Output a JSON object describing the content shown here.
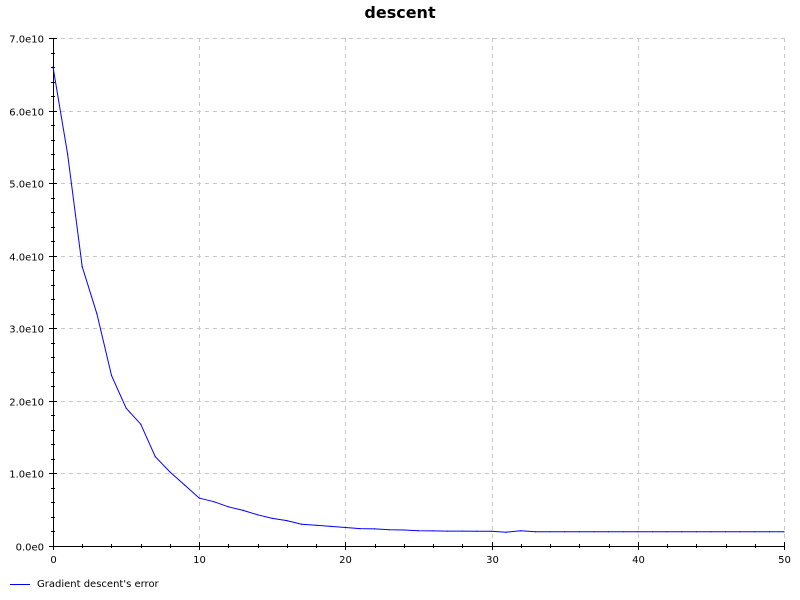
{
  "chart_data": {
    "type": "line",
    "title": "descent",
    "xlabel": "",
    "ylabel": "",
    "xlim": [
      0,
      50
    ],
    "ylim": [
      0,
      70000000000
    ],
    "x_ticks": [
      0,
      10,
      20,
      30,
      40,
      50
    ],
    "x_tick_labels": [
      "0",
      "10",
      "20",
      "30",
      "40",
      "50"
    ],
    "y_ticks": [
      0,
      10000000000,
      20000000000,
      30000000000,
      40000000000,
      50000000000,
      60000000000,
      70000000000
    ],
    "y_tick_labels": [
      "0.0e0",
      "1.0e10",
      "2.0e10",
      "3.0e10",
      "4.0e10",
      "5.0e10",
      "6.0e10",
      "7.0e10"
    ],
    "grid": true,
    "legend_position": "bottom-left",
    "series": [
      {
        "name": "Gradient descent's error",
        "color": "#0000ff",
        "x": [
          0,
          1,
          2,
          3,
          4,
          5,
          6,
          7,
          8,
          9,
          10,
          11,
          12,
          13,
          14,
          15,
          16,
          17,
          18,
          19,
          20,
          21,
          22,
          23,
          24,
          25,
          26,
          27,
          28,
          29,
          30,
          31,
          32,
          33,
          34,
          35,
          36,
          37,
          38,
          39,
          40,
          41,
          42,
          43,
          44,
          45,
          46,
          47,
          48,
          49,
          50
        ],
        "y": [
          66000000000,
          54000000000,
          38500000000,
          32000000000,
          23500000000,
          19000000000,
          16800000000,
          12300000000,
          10200000000,
          8400000000,
          6600000000,
          6100000000,
          5400000000,
          4900000000,
          4300000000,
          3800000000,
          3500000000,
          3000000000,
          2850000000,
          2700000000,
          2550000000,
          2400000000,
          2350000000,
          2250000000,
          2200000000,
          2100000000,
          2080000000,
          2060000000,
          2050000000,
          2040000000,
          2030000000,
          1900000000,
          2100000000,
          1950000000,
          1950000000,
          1950000000,
          1950000000,
          1950000000,
          1950000000,
          1950000000,
          1950000000,
          1950000000,
          1950000000,
          1950000000,
          1950000000,
          1950000000,
          1950000000,
          1950000000,
          1950000000,
          1950000000,
          1950000000
        ]
      }
    ]
  }
}
